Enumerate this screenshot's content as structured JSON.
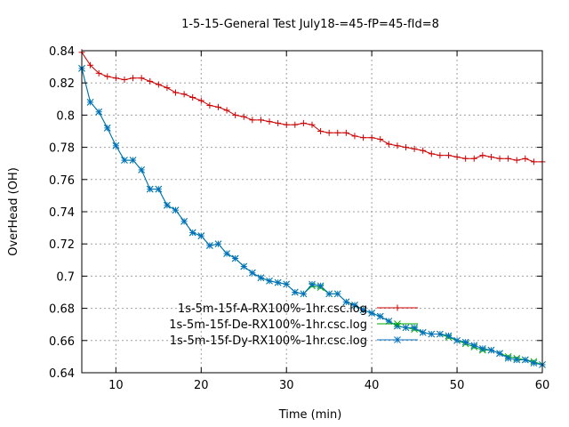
{
  "chart_data": {
    "type": "line",
    "title": "1-5-15-General Test July18-=45-fP=45-fId=8",
    "xlabel": "Time (min)",
    "ylabel": "OverHead (OH)",
    "xlim": [
      6,
      60
    ],
    "ylim": [
      0.64,
      0.84
    ],
    "xticks": [
      10,
      20,
      30,
      40,
      50,
      60
    ],
    "yticks": [
      0.64,
      0.66,
      0.68,
      0.7,
      0.72,
      0.74,
      0.76,
      0.78,
      0.8,
      0.82,
      0.84
    ],
    "grid": true,
    "legend_position": "bottom-center",
    "series": [
      {
        "name": "1s-5m-15f-A-RX100%-1hr.csc.log",
        "color": "#cc0000",
        "marker": "plus",
        "x": [
          6,
          7,
          8,
          9,
          10,
          11,
          12,
          13,
          14,
          15,
          16,
          17,
          18,
          19,
          20,
          21,
          22,
          23,
          24,
          25,
          26,
          27,
          28,
          29,
          30,
          31,
          32,
          33,
          34,
          35,
          36,
          37,
          38,
          39,
          40,
          41,
          42,
          43,
          44,
          45,
          46,
          47,
          48,
          49,
          50,
          51,
          52,
          53,
          54,
          55,
          56,
          57,
          58,
          59,
          60
        ],
        "y": [
          0.839,
          0.831,
          0.826,
          0.824,
          0.823,
          0.822,
          0.823,
          0.823,
          0.821,
          0.819,
          0.817,
          0.814,
          0.813,
          0.811,
          0.809,
          0.806,
          0.805,
          0.803,
          0.8,
          0.799,
          0.797,
          0.797,
          0.796,
          0.795,
          0.794,
          0.794,
          0.795,
          0.794,
          0.79,
          0.789,
          0.789,
          0.789,
          0.787,
          0.786,
          0.786,
          0.785,
          0.782,
          0.781,
          0.78,
          0.779,
          0.778,
          0.776,
          0.775,
          0.775,
          0.774,
          0.773,
          0.773,
          0.775,
          0.774,
          0.773,
          0.773,
          0.772,
          0.773,
          0.771,
          0.771
        ]
      },
      {
        "name": "1s-5m-15f-De-RX100%-1hr.csc.log",
        "color": "#00aa00",
        "marker": "cross",
        "x": [
          6,
          7,
          8,
          9,
          10,
          11,
          12,
          13,
          14,
          15,
          16,
          17,
          18,
          19,
          20,
          21,
          22,
          23,
          24,
          25,
          26,
          27,
          28,
          29,
          30,
          31,
          32,
          33,
          34,
          35,
          36,
          37,
          38,
          39,
          40,
          41,
          42,
          43,
          44,
          45,
          46,
          47,
          48,
          49,
          50,
          51,
          52,
          53,
          54,
          55,
          56,
          57,
          58,
          59,
          60
        ],
        "y": [
          0.829,
          0.808,
          0.802,
          0.792,
          0.781,
          0.772,
          0.772,
          0.766,
          0.754,
          0.754,
          0.744,
          0.741,
          0.734,
          0.727,
          0.725,
          0.719,
          0.72,
          0.714,
          0.711,
          0.706,
          0.702,
          0.699,
          0.697,
          0.696,
          0.695,
          0.69,
          0.689,
          0.694,
          0.693,
          0.689,
          0.689,
          0.684,
          0.682,
          0.679,
          0.677,
          0.675,
          0.672,
          0.669,
          0.668,
          0.667,
          0.665,
          0.664,
          0.664,
          0.662,
          0.66,
          0.658,
          0.656,
          0.654,
          0.654,
          0.652,
          0.65,
          0.649,
          0.648,
          0.647,
          0.645
        ]
      },
      {
        "name": "1s-5m-15f-Dy-RX100%-1hr.csc.log",
        "color": "#0070c0",
        "marker": "star",
        "x": [
          6,
          7,
          8,
          9,
          10,
          11,
          12,
          13,
          14,
          15,
          16,
          17,
          18,
          19,
          20,
          21,
          22,
          23,
          24,
          25,
          26,
          27,
          28,
          29,
          30,
          31,
          32,
          33,
          34,
          35,
          36,
          37,
          38,
          39,
          40,
          41,
          42,
          43,
          44,
          45,
          46,
          47,
          48,
          49,
          50,
          51,
          52,
          53,
          54,
          55,
          56,
          57,
          58,
          59,
          60
        ],
        "y": [
          0.829,
          0.808,
          0.802,
          0.792,
          0.781,
          0.772,
          0.772,
          0.766,
          0.754,
          0.754,
          0.744,
          0.741,
          0.734,
          0.727,
          0.725,
          0.719,
          0.72,
          0.714,
          0.711,
          0.706,
          0.702,
          0.699,
          0.697,
          0.696,
          0.695,
          0.69,
          0.689,
          0.695,
          0.694,
          0.689,
          0.689,
          0.684,
          0.682,
          0.679,
          0.677,
          0.675,
          0.672,
          0.669,
          0.668,
          0.668,
          0.665,
          0.664,
          0.664,
          0.663,
          0.66,
          0.659,
          0.657,
          0.655,
          0.654,
          0.652,
          0.649,
          0.648,
          0.648,
          0.646,
          0.645
        ]
      }
    ]
  }
}
